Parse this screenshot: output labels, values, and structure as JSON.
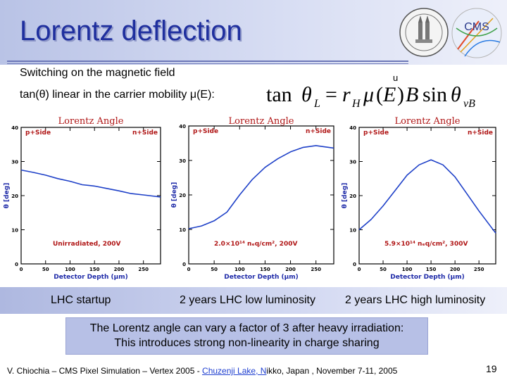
{
  "slide": {
    "title": "Lorentz deflection",
    "subtitle": "Switching on the magnetic field",
    "tan_line": "tan(θ) linear in the carrier mobility μ(E):",
    "formula_u": "u",
    "footer": {
      "before": "V. Chiochia – CMS Pixel Simulation – Vertex 2005 - ",
      "link": "Chuzenji Lake, N",
      "after": "ikko, Japan , November 7-11, 2005"
    },
    "page_number": "19",
    "captions": [
      "LHC startup",
      "2 years LHC low luminosity",
      "2 years LHC high luminosity"
    ],
    "note_lines": [
      "The Lorentz angle can vary a factor of 3 after heavy irradiation:",
      "This introduces strong non-linearity in charge sharing"
    ],
    "logos": [
      "university-seal",
      "cms-logo"
    ]
  },
  "chart_data": [
    {
      "type": "line",
      "title": "Lorentz Angle",
      "xlabel": "Detector Depth (μm)",
      "ylabel": "θ [deg]",
      "xlim": [
        0,
        285
      ],
      "ylim": [
        0,
        40
      ],
      "xticks": [
        "0",
        "50",
        "100",
        "150",
        "200",
        "250"
      ],
      "yticks": [
        "0",
        "10",
        "20",
        "30",
        "40"
      ],
      "labels": [
        "p+Side",
        "n+Side"
      ],
      "annotation": "Unirradiated, 200V",
      "x": [
        0,
        25,
        50,
        75,
        100,
        125,
        150,
        175,
        200,
        225,
        250,
        285
      ],
      "y": [
        27.5,
        26.8,
        26,
        25,
        24.2,
        23.2,
        22.8,
        22.1,
        21.4,
        20.6,
        20.2,
        19.6
      ]
    },
    {
      "type": "line",
      "title": "Lorentz Angle",
      "xlabel": "Detector Depth (μm)",
      "ylabel": "θ [deg]",
      "xlim": [
        0,
        285
      ],
      "ylim": [
        0,
        40
      ],
      "xticks": [
        "0",
        "50",
        "100",
        "150",
        "200",
        "250"
      ],
      "yticks": [
        "0",
        "10",
        "20",
        "30",
        "40"
      ],
      "labels": [
        "p+Side",
        "n+Side"
      ],
      "annotation": "2.0×10¹⁴ nₑq/cm², 200V",
      "x": [
        0,
        25,
        50,
        75,
        100,
        125,
        150,
        175,
        200,
        225,
        250,
        285
      ],
      "y": [
        10.2,
        11,
        12.5,
        15,
        20,
        24.5,
        28,
        30.5,
        32.5,
        33.8,
        34.3,
        33.6
      ]
    },
    {
      "type": "line",
      "title": "Lorentz Angle",
      "xlabel": "Detector Depth (μm)",
      "ylabel": "θ [deg]",
      "xlim": [
        0,
        285
      ],
      "ylim": [
        0,
        40
      ],
      "xticks": [
        "0",
        "50",
        "100",
        "150",
        "200",
        "250"
      ],
      "yticks": [
        "0",
        "10",
        "20",
        "30",
        "40"
      ],
      "labels": [
        "p+Side",
        "n+Side"
      ],
      "annotation": "5.9×10¹⁴ nₑq/cm², 300V",
      "x": [
        0,
        25,
        50,
        75,
        100,
        125,
        150,
        175,
        200,
        225,
        250,
        285
      ],
      "y": [
        10,
        13,
        17,
        21.5,
        26,
        29,
        30.5,
        29,
        25.5,
        20.5,
        15.5,
        9
      ]
    }
  ]
}
